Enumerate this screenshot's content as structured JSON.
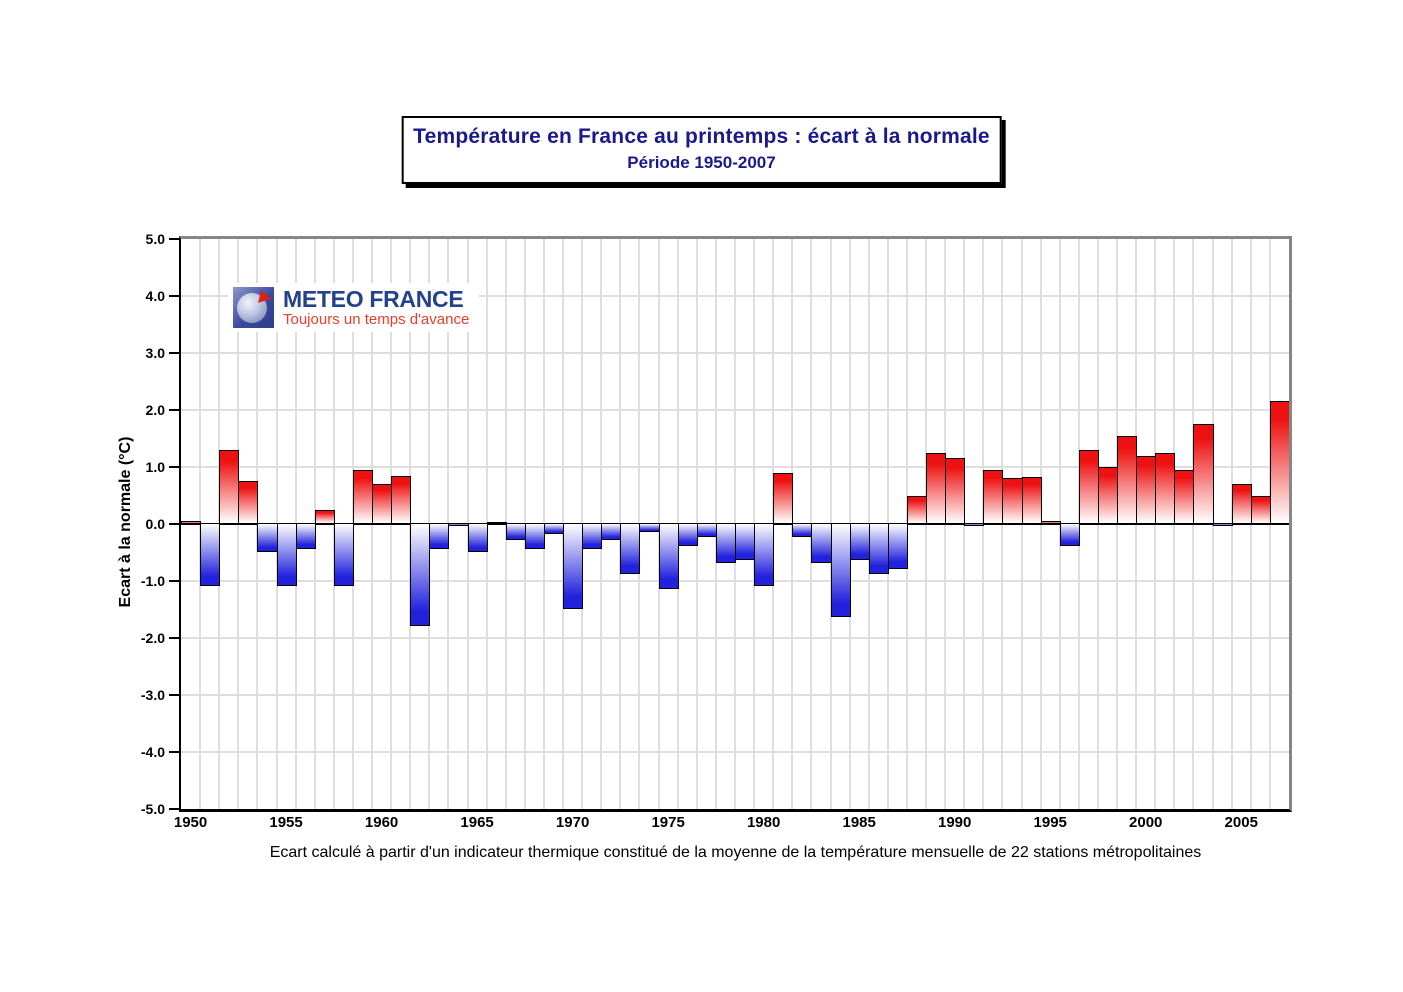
{
  "title_box": {
    "line1": "Température en France au printemps : écart à la normale",
    "line2": "Période 1950-2007"
  },
  "logo": {
    "name": "METEO FRANCE",
    "tagline": "Toujours un temps d'avance"
  },
  "footer": {
    "text": "Ecart calculé à partir d'un indicateur thermique constitué de la moyenne de la température mensuelle de 22 stations métropolitaines"
  },
  "chart_data": {
    "type": "bar",
    "title": "Température en France au printemps : écart à la normale",
    "subtitle": "Période 1950-2007",
    "xlabel": "",
    "ylabel": "Ecart à la normale (°C)",
    "ylim": [
      -5.0,
      5.0
    ],
    "ytick_step": 1.0,
    "ytick_labels": [
      "5.0",
      "4.0",
      "3.0",
      "2.0",
      "1.0",
      "0.0",
      "-1.0",
      "-2.0",
      "-3.0",
      "-4.0",
      "-5.0"
    ],
    "xtick_labels": [
      "1950",
      "1955",
      "1960",
      "1965",
      "1970",
      "1975",
      "1980",
      "1985",
      "1990",
      "1995",
      "2000",
      "2005"
    ],
    "grid": true,
    "legend": "none",
    "categories": [
      1950,
      1951,
      1952,
      1953,
      1954,
      1955,
      1956,
      1957,
      1958,
      1959,
      1960,
      1961,
      1962,
      1963,
      1964,
      1965,
      1966,
      1967,
      1968,
      1969,
      1970,
      1971,
      1972,
      1973,
      1974,
      1975,
      1976,
      1977,
      1978,
      1979,
      1980,
      1981,
      1982,
      1983,
      1984,
      1985,
      1986,
      1987,
      1988,
      1989,
      1990,
      1991,
      1992,
      1993,
      1994,
      1995,
      1996,
      1997,
      1998,
      1999,
      2000,
      2001,
      2002,
      2003,
      2004,
      2005,
      2006,
      2007
    ],
    "values": [
      0.05,
      -1.1,
      1.3,
      0.75,
      -0.5,
      -1.1,
      -0.45,
      0.25,
      -1.1,
      0.95,
      0.7,
      0.85,
      -1.8,
      -0.45,
      -0.03,
      -0.5,
      0.03,
      -0.3,
      -0.45,
      -0.2,
      -1.5,
      -0.45,
      -0.3,
      -0.9,
      -0.15,
      -1.15,
      -0.4,
      -0.25,
      -0.7,
      -0.65,
      -1.1,
      0.9,
      -0.25,
      -0.7,
      -1.65,
      -0.65,
      -0.9,
      -0.8,
      0.5,
      1.25,
      1.15,
      -0.03,
      0.95,
      0.8,
      0.82,
      0.05,
      -0.4,
      1.3,
      1.0,
      1.55,
      1.2,
      1.25,
      0.95,
      1.75,
      -0.03,
      0.7,
      0.5,
      2.15
    ],
    "colors": {
      "positive_bar": "#ee1111",
      "negative_bar": "#2222dd",
      "gridline": "#dedede",
      "axis": "#000000",
      "frame_shadow": "#868686",
      "title_text": "#1a1a8c",
      "logo_blue": "#24418e",
      "logo_red": "#e8402c"
    }
  }
}
